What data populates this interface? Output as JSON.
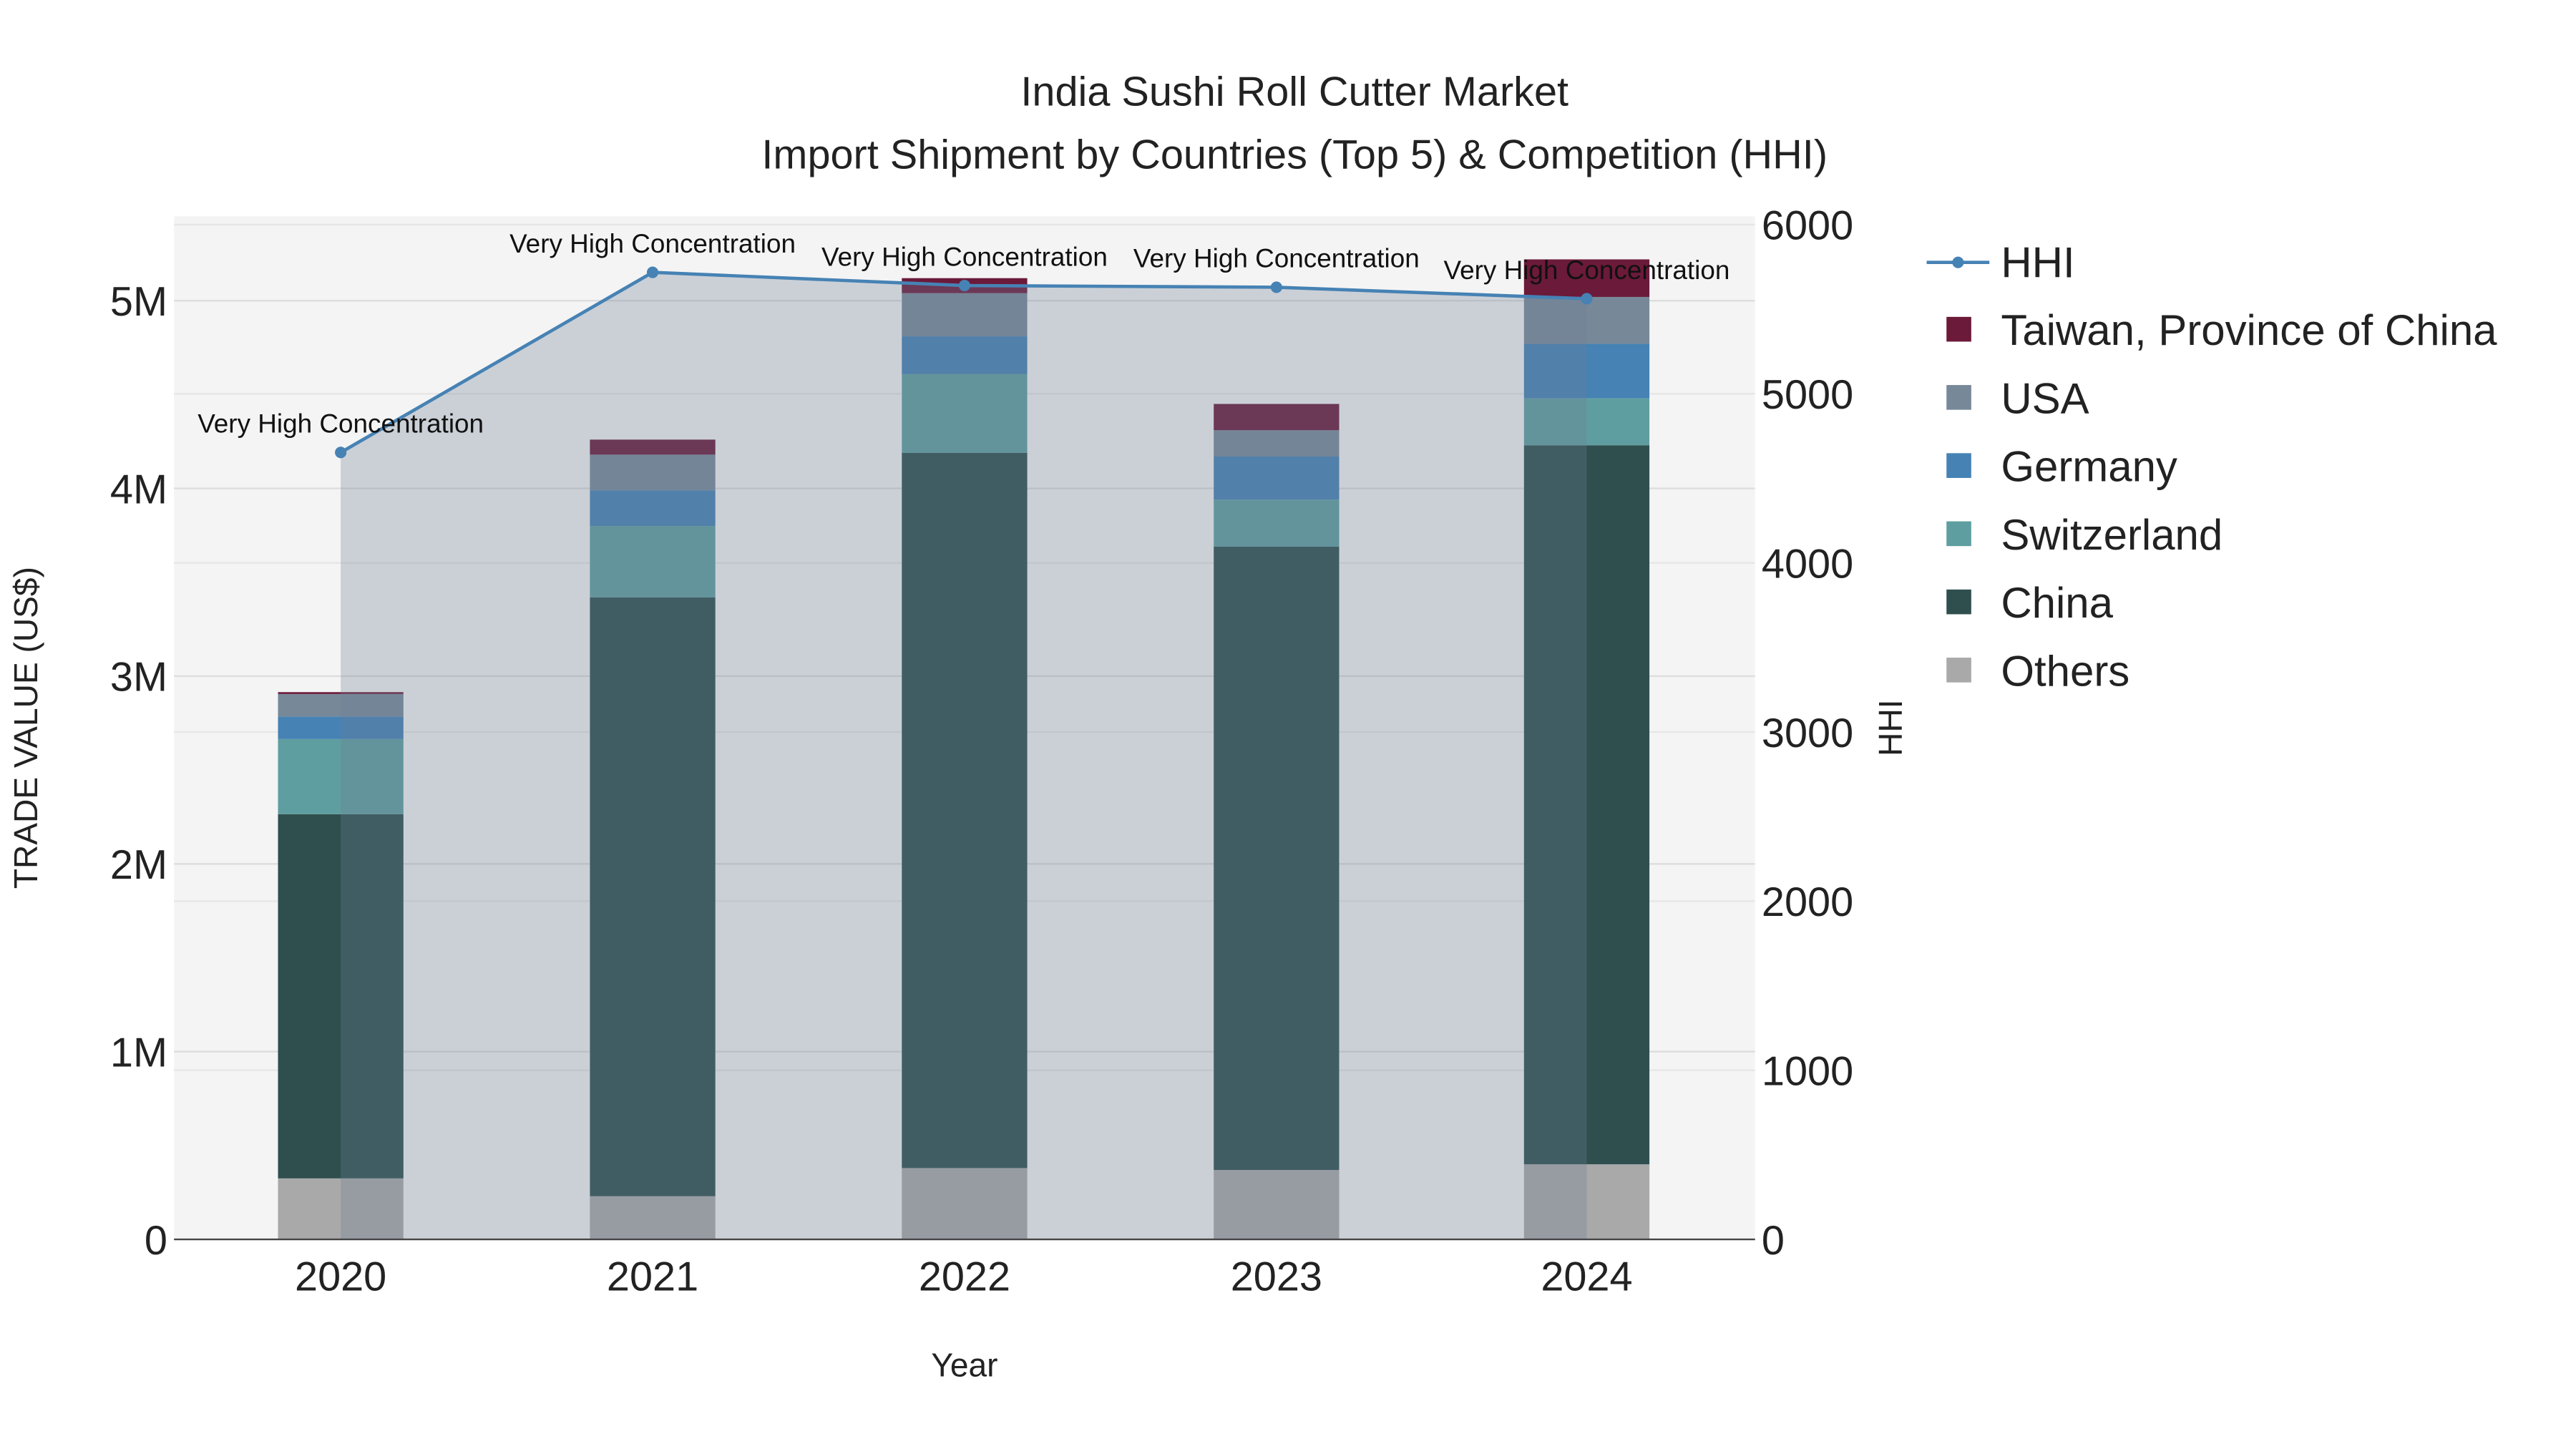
{
  "chart_data": {
    "type": "bar",
    "title": "India Sushi Roll Cutter Market",
    "subtitle": "Import Shipment by Countries (Top 5) & Competition (HHI)",
    "xlabel": "Year",
    "ylabel": "TRADE VALUE (US$)",
    "y2label": "HHI",
    "categories": [
      "2020",
      "2021",
      "2022",
      "2023",
      "2024"
    ],
    "ylim": [
      0,
      5450000
    ],
    "y2lim": [
      0,
      6050
    ],
    "yticks": [
      {
        "v": 0,
        "label": "0"
      },
      {
        "v": 1000000,
        "label": "1M"
      },
      {
        "v": 2000000,
        "label": "2M"
      },
      {
        "v": 3000000,
        "label": "3M"
      },
      {
        "v": 4000000,
        "label": "4M"
      },
      {
        "v": 5000000,
        "label": "5M"
      }
    ],
    "y2ticks": [
      {
        "v": 0,
        "label": "0"
      },
      {
        "v": 1000,
        "label": "1000"
      },
      {
        "v": 2000,
        "label": "2000"
      },
      {
        "v": 3000,
        "label": "3000"
      },
      {
        "v": 4000,
        "label": "4000"
      },
      {
        "v": 5000,
        "label": "5000"
      },
      {
        "v": 6000,
        "label": "6000"
      }
    ],
    "series": [
      {
        "name": "Others",
        "color": "#a9a9a9",
        "values": [
          325000,
          230000,
          380000,
          370000,
          400000
        ]
      },
      {
        "name": "China",
        "color": "#2f4f4f",
        "values": [
          1940000,
          3190000,
          3810000,
          3320000,
          3830000
        ]
      },
      {
        "name": "Switzerland",
        "color": "#5f9ea0",
        "values": [
          400000,
          380000,
          420000,
          250000,
          250000
        ]
      },
      {
        "name": "Germany",
        "color": "#4682b4",
        "values": [
          120000,
          190000,
          200000,
          230000,
          290000
        ]
      },
      {
        "name": "USA",
        "color": "#778899",
        "values": [
          120000,
          190000,
          230000,
          140000,
          250000
        ]
      },
      {
        "name": "Taiwan, Province of China",
        "color": "#6b1a3a",
        "values": [
          10000,
          80000,
          80000,
          140000,
          200000
        ]
      }
    ],
    "hhi": {
      "name": "HHI",
      "color": "#4682b4",
      "values": [
        4653,
        5718,
        5640,
        5630,
        5562
      ],
      "annotations": [
        "Very High Concentration",
        "Very High Concentration",
        "Very High Concentration",
        "Very High Concentration",
        "Very High Concentration"
      ]
    },
    "legend": {
      "placement": "right",
      "order": [
        "HHI",
        "Taiwan, Province of China",
        "USA",
        "Germany",
        "Switzerland",
        "China",
        "Others"
      ]
    },
    "grid": true
  }
}
